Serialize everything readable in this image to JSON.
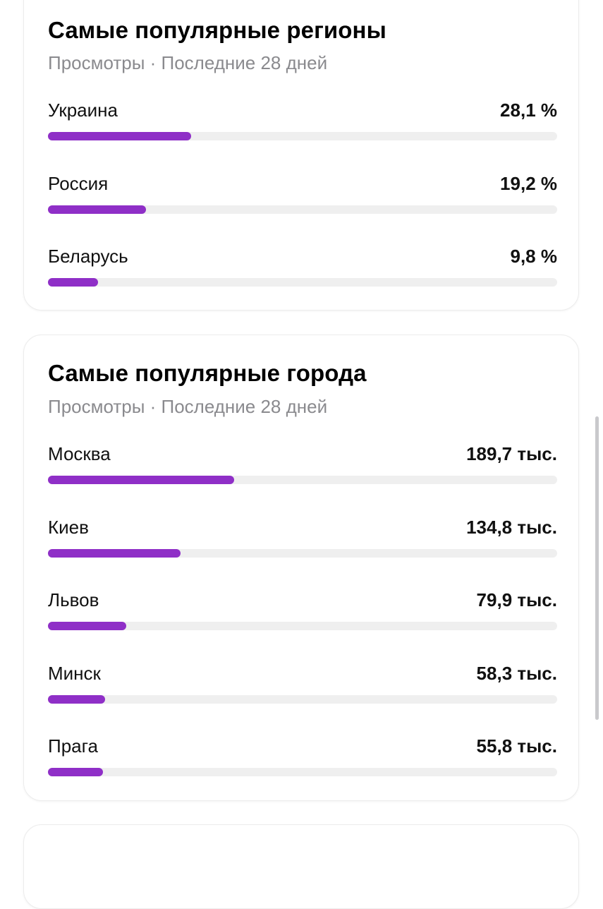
{
  "accent_color": "#8f2fc7",
  "regions": {
    "title": "Самые популярные регионы",
    "subtitle": "Просмотры · Последние 28 дней",
    "items": [
      {
        "label": "Украина",
        "value": "28,1 %",
        "fraction": 0.281
      },
      {
        "label": "Россия",
        "value": "19,2 %",
        "fraction": 0.192
      },
      {
        "label": "Беларусь",
        "value": "9,8 %",
        "fraction": 0.098
      }
    ]
  },
  "cities": {
    "title": "Самые популярные города",
    "subtitle": "Просмотры · Последние 28 дней",
    "items": [
      {
        "label": "Москва",
        "value": "189,7 тыс.",
        "fraction": 0.365
      },
      {
        "label": "Киев",
        "value": "134,8 тыс.",
        "fraction": 0.26
      },
      {
        "label": "Львов",
        "value": "79,9 тыс.",
        "fraction": 0.154
      },
      {
        "label": "Минск",
        "value": "58,3 тыс.",
        "fraction": 0.112
      },
      {
        "label": "Прага",
        "value": "55,8 тыс.",
        "fraction": 0.108
      }
    ]
  }
}
